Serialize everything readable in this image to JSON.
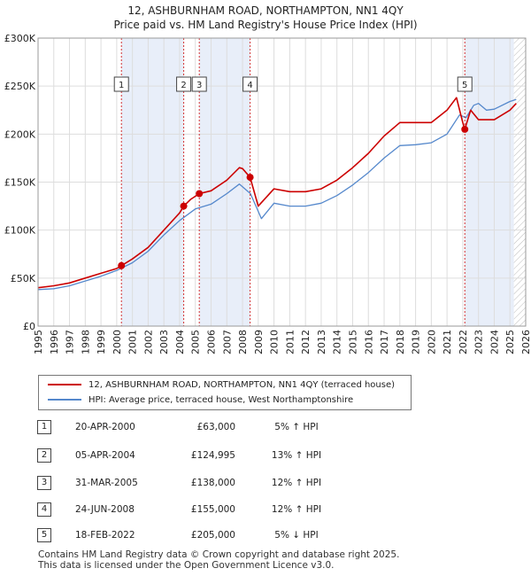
{
  "chart_data": {
    "type": "line",
    "title": "12, ASHBURNHAM ROAD, NORTHAMPTON, NN1 4QY",
    "subtitle": "Price paid vs. HM Land Registry's House Price Index (HPI)",
    "xlabel": "",
    "ylabel": "",
    "xlim": [
      1995,
      2026
    ],
    "ylim": [
      0,
      300000
    ],
    "y_ticks": [
      0,
      50000,
      100000,
      150000,
      200000,
      250000,
      300000
    ],
    "y_tick_labels": [
      "£0",
      "£50K",
      "£100K",
      "£150K",
      "£200K",
      "£250K",
      "£300K"
    ],
    "x_ticks": [
      1995,
      1996,
      1997,
      1998,
      1999,
      2000,
      2001,
      2002,
      2003,
      2004,
      2005,
      2006,
      2007,
      2008,
      2009,
      2010,
      2011,
      2012,
      2013,
      2014,
      2015,
      2016,
      2017,
      2018,
      2019,
      2020,
      2021,
      2022,
      2023,
      2024,
      2025,
      2026
    ],
    "x_tick_labels": [
      "1995",
      "1996",
      "1997",
      "1998",
      "1999",
      "2000",
      "2001",
      "2002",
      "2003",
      "2004",
      "2005",
      "2006",
      "2007",
      "2008",
      "2009",
      "2010",
      "2011",
      "2012",
      "2013",
      "2014",
      "2015",
      "2016",
      "2017",
      "2018",
      "2019",
      "2020",
      "2021",
      "2022",
      "2023",
      "2024",
      "2025",
      "2026"
    ],
    "grid": true,
    "colors": {
      "property": "#cc0000",
      "hpi": "#5588cc",
      "shade": "#e8eef9",
      "grid": "#dddddd"
    },
    "series": [
      {
        "name": "12, ASHBURNHAM ROAD, NORTHAMPTON, NN1 4QY (terraced house)",
        "x": [
          1995.0,
          1996.0,
          1997.0,
          1998.0,
          1999.0,
          2000.0,
          2000.3,
          2001.0,
          2002.0,
          2003.0,
          2004.0,
          2004.26,
          2004.7,
          2005.25,
          2006.0,
          2007.0,
          2007.8,
          2008.0,
          2008.48,
          2009.0,
          2010.0,
          2011.0,
          2012.0,
          2013.0,
          2014.0,
          2015.0,
          2016.0,
          2017.0,
          2018.0,
          2019.0,
          2020.0,
          2021.0,
          2021.6,
          2022.0,
          2022.13,
          2022.5,
          2023.0,
          2024.0,
          2025.0,
          2025.4
        ],
        "values": [
          40000,
          42000,
          45000,
          50000,
          55000,
          60000,
          63000,
          70000,
          82000,
          100000,
          118000,
          124995,
          132000,
          138000,
          141000,
          152000,
          165000,
          164000,
          155000,
          125000,
          143000,
          140000,
          140000,
          143000,
          152000,
          165000,
          180000,
          198000,
          212000,
          212000,
          212000,
          225000,
          238000,
          212000,
          205000,
          225000,
          215000,
          215000,
          225000,
          232000
        ]
      },
      {
        "name": "HPI: Average price, terraced house, West Northamptonshire",
        "x": [
          1995.0,
          1996.0,
          1997.0,
          1998.0,
          1999.0,
          2000.0,
          2001.0,
          2002.0,
          2003.0,
          2004.0,
          2005.0,
          2006.0,
          2007.0,
          2007.8,
          2008.5,
          2009.2,
          2010.0,
          2011.0,
          2012.0,
          2013.0,
          2014.0,
          2015.0,
          2016.0,
          2017.0,
          2018.0,
          2019.0,
          2020.0,
          2021.0,
          2021.8,
          2022.2,
          2022.7,
          2023.0,
          2023.5,
          2024.0,
          2025.0,
          2025.4
        ],
        "values": [
          38000,
          39000,
          42000,
          47000,
          52000,
          58000,
          66000,
          78000,
          95000,
          110000,
          122000,
          127000,
          138000,
          148000,
          138000,
          112000,
          128000,
          125000,
          125000,
          128000,
          136000,
          147000,
          160000,
          175000,
          188000,
          189000,
          191000,
          200000,
          220000,
          217000,
          230000,
          232000,
          225000,
          226000,
          234000,
          236000
        ]
      }
    ],
    "sales": [
      {
        "label": "1",
        "x": 2000.3,
        "value": 63000
      },
      {
        "label": "2",
        "x": 2004.26,
        "value": 124995
      },
      {
        "label": "3",
        "x": 2005.25,
        "value": 138000
      },
      {
        "label": "4",
        "x": 2008.48,
        "value": 155000
      },
      {
        "label": "5",
        "x": 2022.13,
        "value": 205000
      }
    ],
    "shaded_ranges": [
      [
        2000.3,
        2004.26
      ],
      [
        2005.25,
        2008.48
      ],
      [
        2022.13,
        2025.25
      ]
    ],
    "hatched_from": 2025.25,
    "marker_label_value": 252000
  },
  "legend": {
    "property_label": "12, ASHBURNHAM ROAD, NORTHAMPTON, NN1 4QY (terraced house)",
    "hpi_label": "HPI: Average price, terraced house, West Northamptonshire"
  },
  "transactions": [
    {
      "num": "1",
      "date": "20-APR-2000",
      "price": "£63,000",
      "hpi": "5% ↑ HPI"
    },
    {
      "num": "2",
      "date": "05-APR-2004",
      "price": "£124,995",
      "hpi": "13% ↑ HPI"
    },
    {
      "num": "3",
      "date": "31-MAR-2005",
      "price": "£138,000",
      "hpi": "12% ↑ HPI"
    },
    {
      "num": "4",
      "date": "24-JUN-2008",
      "price": "£155,000",
      "hpi": "12% ↑ HPI"
    },
    {
      "num": "5",
      "date": "18-FEB-2022",
      "price": "£205,000",
      "hpi": "5% ↓ HPI"
    }
  ],
  "footer": {
    "line1": "Contains HM Land Registry data © Crown copyright and database right 2025.",
    "line2": "This data is licensed under the Open Government Licence v3.0."
  }
}
